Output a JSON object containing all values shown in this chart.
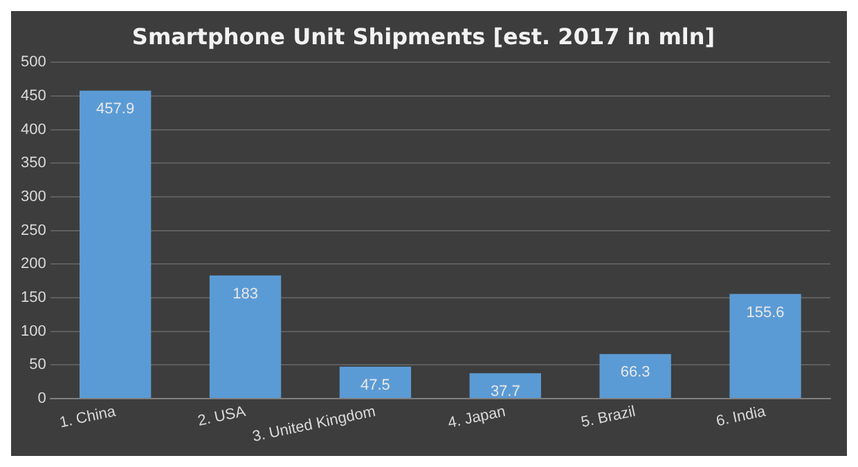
{
  "chart_data": {
    "type": "bar",
    "title": "Smartphone Unit Shipments [est. 2017 in mln]",
    "categories": [
      "1. China",
      "2. USA",
      "3. United Kingdom",
      "4. Japan",
      "5. Brazil",
      "6. India"
    ],
    "values": [
      457.9,
      183,
      47.5,
      37.7,
      66.3,
      155.6
    ],
    "color": "#5b9bd5",
    "ylim": [
      0,
      500
    ],
    "yticks": [
      0,
      50,
      100,
      150,
      200,
      250,
      300,
      350,
      400,
      450,
      500
    ],
    "grid": "y",
    "data_labels": true,
    "legend": false
  }
}
